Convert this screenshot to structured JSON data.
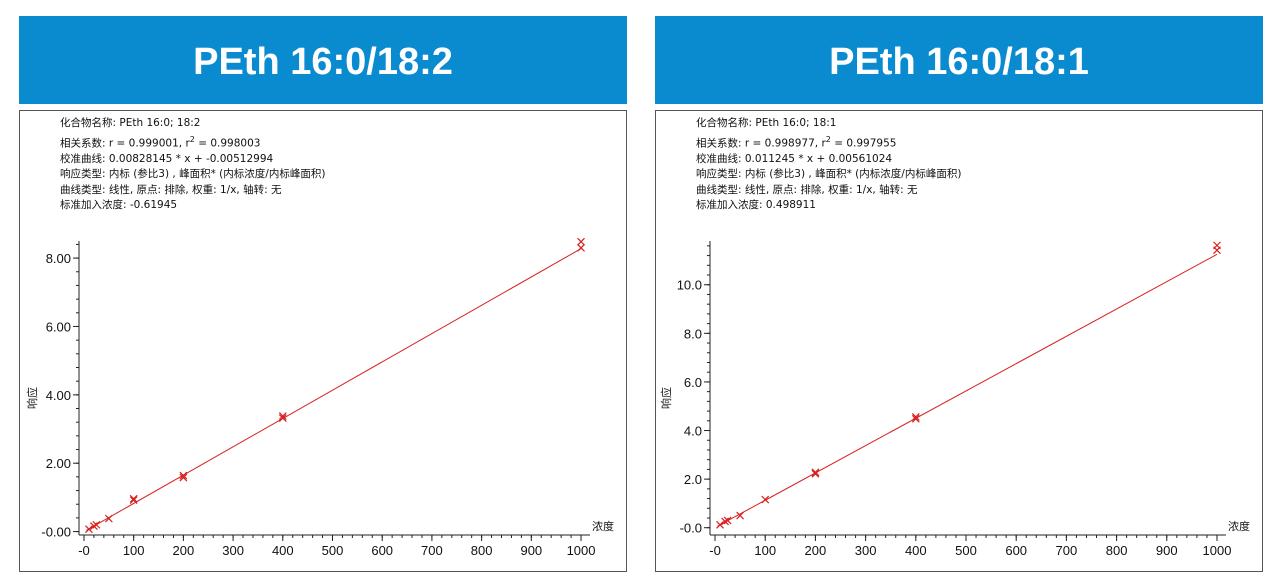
{
  "charts": [
    {
      "banner": "PEth 16:0/18:2",
      "info": {
        "compound": "化合物名称: PEth 16:0; 18:2",
        "correlation_prefix": "相关系数:  r = 0.999001, r",
        "correlation_sup": "2",
        "correlation_suffix": " = 0.998003",
        "curve": "校准曲线: 0.00828145 * x + -0.00512994",
        "response": "响应类型: 内标 (参比3) , 峰面积* (内标浓度/内标峰面积)",
        "curve_type": "曲线类型: 线性, 原点: 排除, 权重: 1/x, 轴转: 无",
        "std_add": "标准加入浓度:  -0.61945"
      }
    },
    {
      "banner": "PEth 16:0/18:1",
      "info": {
        "compound": "化合物名称: PEth 16:0; 18:1",
        "correlation_prefix": "相关系数:  r = 0.998977, r",
        "correlation_sup": "2",
        "correlation_suffix": " = 0.997955",
        "curve": "校准曲线: 0.011245 * x + 0.00561024",
        "response": "响应类型: 内标 (参比3) , 峰面积* (内标浓度/内标峰面积)",
        "curve_type": "曲线类型: 线性, 原点: 排除, 权重: 1/x, 轴转: 无",
        "std_add": "标准加入浓度: 0.498911"
      }
    }
  ],
  "chart_data": [
    {
      "type": "scatter",
      "title": "PEth 16:0/18:2",
      "xlabel": "浓度",
      "ylabel": "响应",
      "xlim": [
        -10,
        1010
      ],
      "ylim": [
        -0.1,
        8.5
      ],
      "x_ticks": [
        0,
        100,
        200,
        300,
        400,
        500,
        600,
        700,
        800,
        900,
        1000
      ],
      "x_tick_labels": [
        "-0",
        "100",
        "200",
        "300",
        "400",
        "500",
        "600",
        "700",
        "800",
        "900",
        "1000"
      ],
      "y_ticks": [
        0,
        2,
        4,
        6,
        8
      ],
      "y_tick_labels": [
        "-0.00",
        "2.00",
        "4.00",
        "6.00",
        "8.00"
      ],
      "fit_line": {
        "slope": 0.00828145,
        "intercept": -0.00512994
      },
      "points": [
        {
          "x": 10,
          "y": 0.07
        },
        {
          "x": 20,
          "y": 0.16
        },
        {
          "x": 25,
          "y": 0.2
        },
        {
          "x": 50,
          "y": 0.38
        },
        {
          "x": 100,
          "y": 0.96
        },
        {
          "x": 100,
          "y": 0.92
        },
        {
          "x": 200,
          "y": 1.64
        },
        {
          "x": 200,
          "y": 1.58
        },
        {
          "x": 400,
          "y": 3.38
        },
        {
          "x": 400,
          "y": 3.32
        },
        {
          "x": 1000,
          "y": 8.48
        },
        {
          "x": 1000,
          "y": 8.3
        }
      ],
      "grid": false
    },
    {
      "type": "scatter",
      "title": "PEth 16:0/18:1",
      "xlabel": "浓度",
      "ylabel": "响应",
      "xlim": [
        -10,
        1010
      ],
      "ylim": [
        -0.3,
        11.8
      ],
      "x_ticks": [
        0,
        100,
        200,
        300,
        400,
        500,
        600,
        700,
        800,
        900,
        1000
      ],
      "x_tick_labels": [
        "-0",
        "100",
        "200",
        "300",
        "400",
        "500",
        "600",
        "700",
        "800",
        "900",
        "1000"
      ],
      "y_ticks": [
        0,
        2,
        4,
        6,
        8,
        10
      ],
      "y_tick_labels": [
        "-0.0",
        "2.0",
        "4.0",
        "6.0",
        "8.0",
        "10.0"
      ],
      "fit_line": {
        "slope": 0.011245,
        "intercept": 0.00561024
      },
      "points": [
        {
          "x": 10,
          "y": 0.12
        },
        {
          "x": 20,
          "y": 0.26
        },
        {
          "x": 25,
          "y": 0.3
        },
        {
          "x": 50,
          "y": 0.5
        },
        {
          "x": 100,
          "y": 1.16
        },
        {
          "x": 200,
          "y": 2.28
        },
        {
          "x": 200,
          "y": 2.22
        },
        {
          "x": 400,
          "y": 4.56
        },
        {
          "x": 400,
          "y": 4.48
        },
        {
          "x": 1000,
          "y": 11.62
        },
        {
          "x": 1000,
          "y": 11.42
        }
      ],
      "grid": false
    }
  ]
}
